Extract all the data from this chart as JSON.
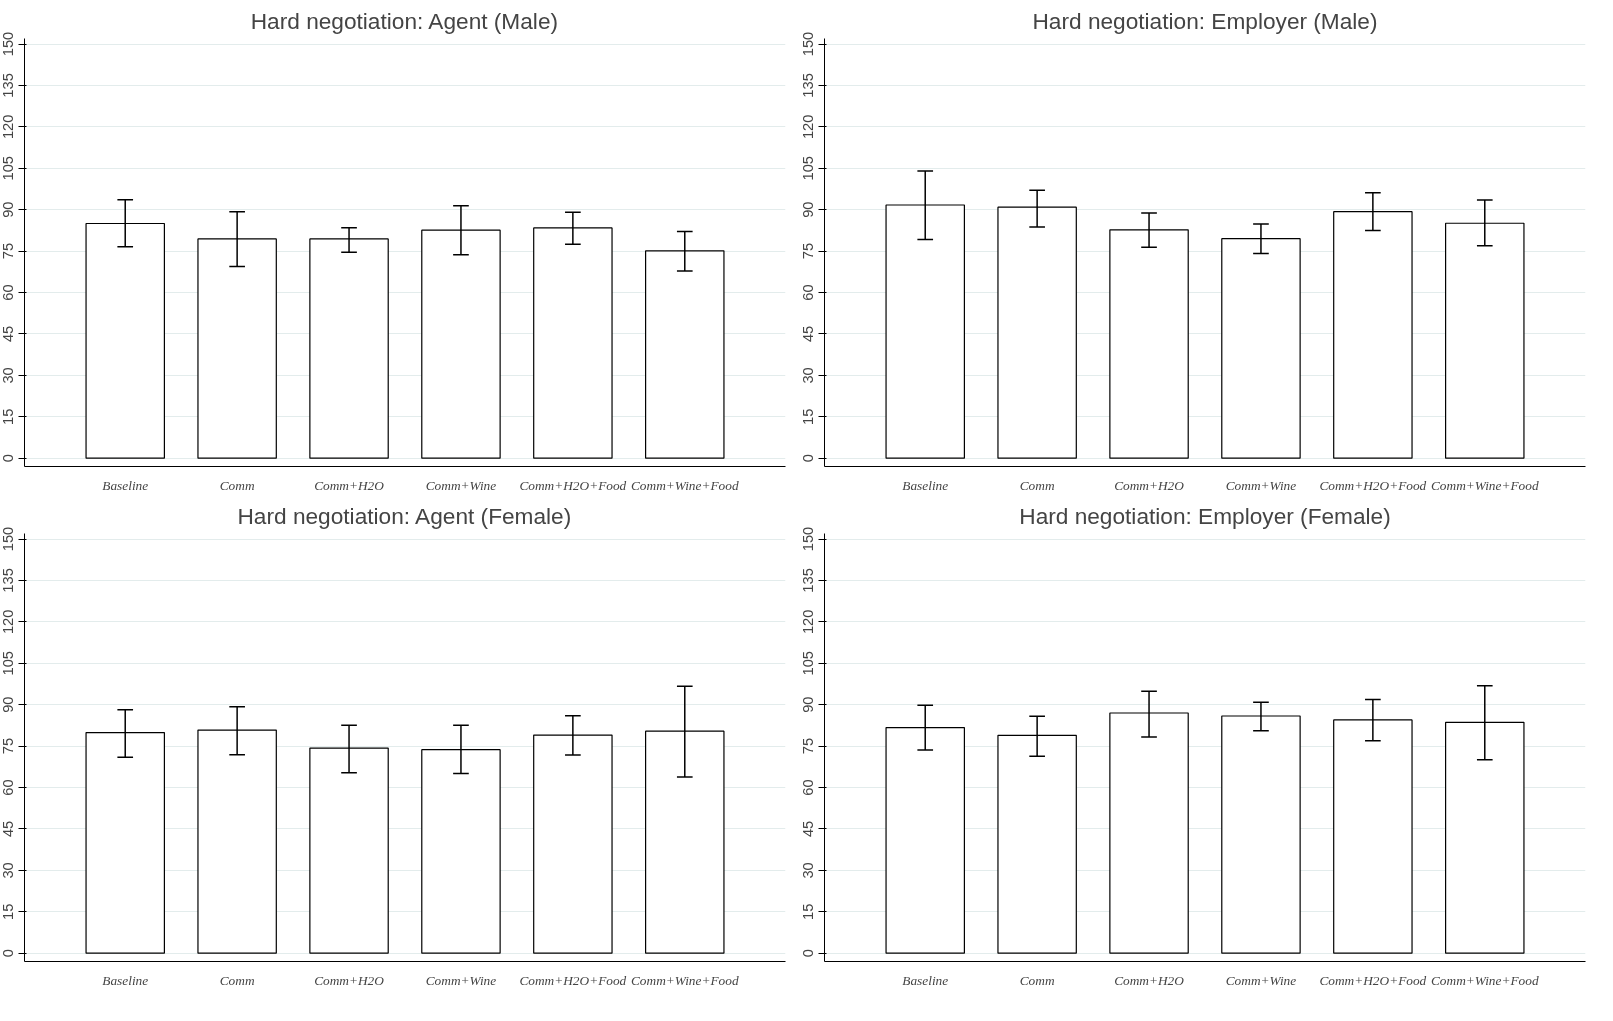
{
  "chart_data": [
    {
      "type": "bar",
      "title": "Hard negotiation: Agent (Male)",
      "categories": [
        "Baseline",
        "Comm",
        "Comm+H2O",
        "Comm+Wine",
        "Comm+H2O+Food",
        "Comm+Wine+Food"
      ],
      "values": [
        85,
        79.4,
        79.4,
        82.6,
        83.4,
        75.1
      ],
      "errors": [
        [
          76.6,
          93.6
        ],
        [
          69.4,
          89.3
        ],
        [
          74.6,
          83.5
        ],
        [
          73.7,
          91.4
        ],
        [
          77.5,
          89.1
        ],
        [
          67.8,
          82.1
        ]
      ],
      "color": "#ffffff",
      "ylim": [
        -3,
        152
      ],
      "yticks": [
        0,
        15,
        30,
        45,
        60,
        75,
        90,
        105,
        120,
        135,
        150
      ],
      "grid": "y"
    },
    {
      "type": "bar",
      "title": "Hard negotiation: Employer (Male)",
      "categories": [
        "Baseline",
        "Comm",
        "Comm+H2O",
        "Comm+Wine",
        "Comm+H2O+Food",
        "Comm+Wine+Food"
      ],
      "values": [
        91.7,
        90.9,
        82.7,
        79.5,
        89.3,
        85.1
      ],
      "errors": [
        [
          79.2,
          104
        ],
        [
          83.7,
          97
        ],
        [
          76.4,
          88.8
        ],
        [
          74.1,
          84.8
        ],
        [
          82.5,
          96.1
        ],
        [
          76.9,
          93.5
        ]
      ],
      "color": "#ffffff",
      "ylim": [
        -3,
        152
      ],
      "yticks": [
        0,
        15,
        30,
        45,
        60,
        75,
        90,
        105,
        120,
        135,
        150
      ],
      "grid": "y"
    },
    {
      "type": "bar",
      "title": "Hard negotiation: Agent (Female)",
      "categories": [
        "Baseline",
        "Comm",
        "Comm+H2O",
        "Comm+Wine",
        "Comm+H2O+Food",
        "Comm+Wine+Food"
      ],
      "values": [
        79.9,
        80.8,
        74.3,
        73.7,
        79,
        80.4
      ],
      "errors": [
        [
          71,
          88.2
        ],
        [
          71.9,
          89.3
        ],
        [
          65.4,
          82.6
        ],
        [
          65.1,
          82.6
        ],
        [
          71.8,
          86
        ],
        [
          63.8,
          96.7
        ]
      ],
      "color": "#ffffff",
      "ylim": [
        -3,
        152
      ],
      "yticks": [
        0,
        15,
        30,
        45,
        60,
        75,
        90,
        105,
        120,
        135,
        150
      ],
      "grid": "y"
    },
    {
      "type": "bar",
      "title": "Hard negotiation: Employer (Female)",
      "categories": [
        "Baseline",
        "Comm",
        "Comm+H2O",
        "Comm+Wine",
        "Comm+H2O+Food",
        "Comm+Wine+Food"
      ],
      "values": [
        81.7,
        78.9,
        87,
        85.9,
        84.5,
        83.6
      ],
      "errors": [
        [
          73.6,
          89.8
        ],
        [
          71.3,
          85.8
        ],
        [
          78.3,
          94.9
        ],
        [
          80.6,
          90.9
        ],
        [
          76.9,
          91.9
        ],
        [
          70.1,
          96.9
        ]
      ],
      "color": "#ffffff",
      "ylim": [
        -3,
        152
      ],
      "yticks": [
        0,
        15,
        30,
        45,
        60,
        75,
        90,
        105,
        120,
        135,
        150
      ],
      "grid": "y"
    }
  ]
}
